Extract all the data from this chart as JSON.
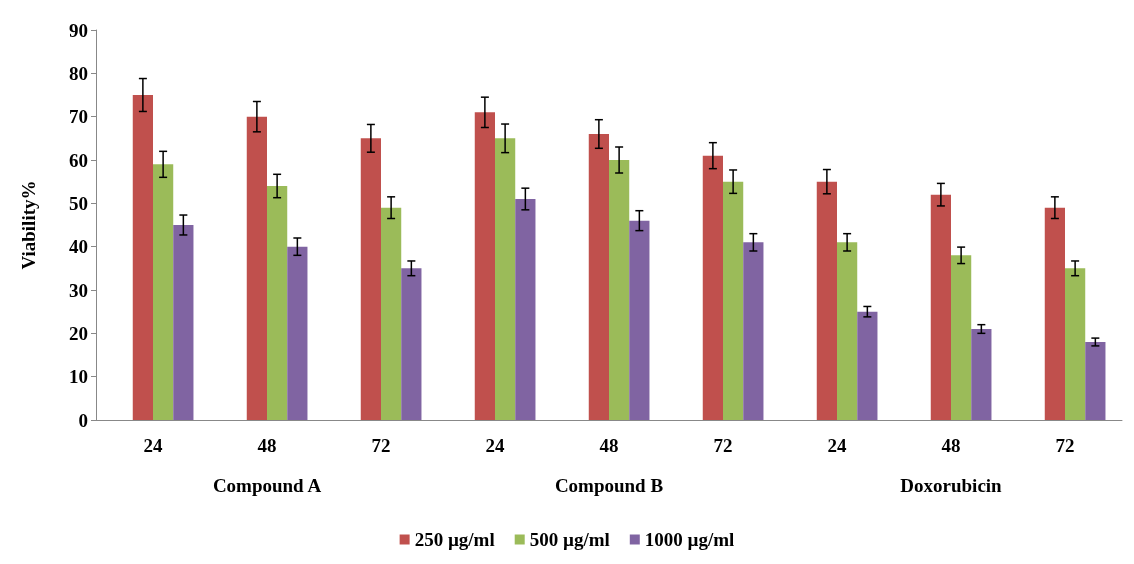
{
  "chart_data": {
    "type": "bar",
    "ylabel": "Viability%",
    "categories": [
      "24",
      "48",
      "72",
      "24",
      "48",
      "72",
      "24",
      "48",
      "72"
    ],
    "annotations": [
      "Compound A",
      "Compound B",
      "Doxorubicin"
    ],
    "series": [
      {
        "color": "#4f81bd",
        "values": [
          null,
          null,
          null,
          null,
          null,
          null,
          null,
          null,
          null
        ]
      },
      {
        "name": "250 µg/ml",
        "color": "#c0504d",
        "values": [
          75,
          70,
          65,
          71,
          66,
          61,
          55,
          52,
          49
        ],
        "errors": [
          3.8,
          3.5,
          3.2,
          3.5,
          3.3,
          3,
          2.8,
          2.6,
          2.5
        ]
      },
      {
        "name": "500 µg/ml",
        "color": "#9bbb59",
        "values": [
          59,
          54,
          49,
          65,
          60,
          55,
          41,
          38,
          35
        ],
        "errors": [
          3,
          2.7,
          2.5,
          3.3,
          3,
          2.7,
          2,
          1.9,
          1.7
        ]
      },
      {
        "name": "1000 µg/ml",
        "color": "#8064a2",
        "values": [
          45,
          40,
          35,
          51,
          46,
          41,
          25,
          21,
          18
        ],
        "errors": [
          2.3,
          2,
          1.7,
          2.5,
          2.3,
          2,
          1.2,
          1,
          0.9
        ]
      }
    ],
    "ylim": [
      0,
      90
    ],
    "yticks": [
      0,
      10,
      20,
      30,
      40,
      50,
      60,
      70,
      80,
      90
    ],
    "grid": false,
    "legend": "bottom"
  }
}
